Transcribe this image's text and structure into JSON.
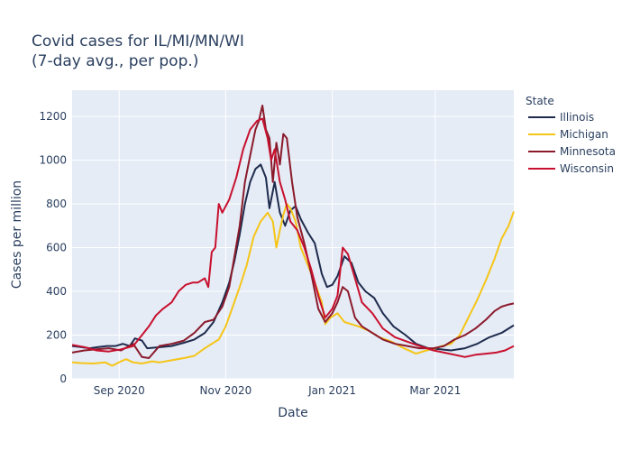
{
  "chart_data": {
    "type": "line",
    "title_lines": [
      "Covid cases for IL/MI/MN/WI",
      "(7-day avg., per pop.)"
    ],
    "xlabel": "Date",
    "ylabel": "Cases per million",
    "x_start": "2020-08-05",
    "x_end": "2021-04-15",
    "xlim": [
      "2020-08-05",
      "2021-04-15"
    ],
    "ylim": [
      0,
      1320
    ],
    "y_ticks": [
      0,
      200,
      400,
      600,
      800,
      1000,
      1200
    ],
    "x_ticks": [
      {
        "date": "2020-09-01",
        "label": "Sep 2020"
      },
      {
        "date": "2020-11-01",
        "label": "Nov 2020"
      },
      {
        "date": "2021-01-01",
        "label": "Jan 2021"
      },
      {
        "date": "2021-03-01",
        "label": "Mar 2021"
      }
    ],
    "grid": true,
    "plot_background": "#e5ecf6",
    "legend": {
      "title": "State",
      "placement": "right"
    },
    "series": [
      {
        "name": "Illinois",
        "color": "#1f2b4d",
        "points": [
          [
            "2020-08-05",
            150
          ],
          [
            "2020-08-10",
            145
          ],
          [
            "2020-08-15",
            140
          ],
          [
            "2020-08-20",
            145
          ],
          [
            "2020-08-25",
            150
          ],
          [
            "2020-08-30",
            150
          ],
          [
            "2020-09-03",
            160
          ],
          [
            "2020-09-07",
            150
          ],
          [
            "2020-09-10",
            185
          ],
          [
            "2020-09-14",
            175
          ],
          [
            "2020-09-17",
            140
          ],
          [
            "2020-09-25",
            145
          ],
          [
            "2020-10-01",
            150
          ],
          [
            "2020-10-08",
            165
          ],
          [
            "2020-10-14",
            180
          ],
          [
            "2020-10-20",
            210
          ],
          [
            "2020-10-25",
            260
          ],
          [
            "2020-10-30",
            350
          ],
          [
            "2020-11-03",
            440
          ],
          [
            "2020-11-06",
            540
          ],
          [
            "2020-11-09",
            660
          ],
          [
            "2020-11-12",
            800
          ],
          [
            "2020-11-15",
            900
          ],
          [
            "2020-11-18",
            960
          ],
          [
            "2020-11-21",
            980
          ],
          [
            "2020-11-24",
            920
          ],
          [
            "2020-11-26",
            780
          ],
          [
            "2020-11-29",
            900
          ],
          [
            "2020-12-02",
            760
          ],
          [
            "2020-12-05",
            700
          ],
          [
            "2020-12-08",
            770
          ],
          [
            "2020-12-11",
            790
          ],
          [
            "2020-12-14",
            730
          ],
          [
            "2020-12-18",
            670
          ],
          [
            "2020-12-22",
            620
          ],
          [
            "2020-12-26",
            480
          ],
          [
            "2020-12-29",
            420
          ],
          [
            "2021-01-01",
            430
          ],
          [
            "2021-01-04",
            470
          ],
          [
            "2021-01-08",
            560
          ],
          [
            "2021-01-12",
            530
          ],
          [
            "2021-01-16",
            440
          ],
          [
            "2021-01-20",
            400
          ],
          [
            "2021-01-25",
            370
          ],
          [
            "2021-01-30",
            300
          ],
          [
            "2021-02-05",
            240
          ],
          [
            "2021-02-12",
            200
          ],
          [
            "2021-02-18",
            160
          ],
          [
            "2021-02-25",
            140
          ],
          [
            "2021-03-04",
            135
          ],
          [
            "2021-03-10",
            130
          ],
          [
            "2021-03-18",
            140
          ],
          [
            "2021-03-25",
            160
          ],
          [
            "2021-04-01",
            190
          ],
          [
            "2021-04-08",
            210
          ],
          [
            "2021-04-15",
            245
          ]
        ]
      },
      {
        "name": "Michigan",
        "color": "#f5c518",
        "points": [
          [
            "2020-08-05",
            75
          ],
          [
            "2020-08-10",
            72
          ],
          [
            "2020-08-17",
            70
          ],
          [
            "2020-08-24",
            75
          ],
          [
            "2020-08-28",
            60
          ],
          [
            "2020-09-02",
            80
          ],
          [
            "2020-09-05",
            90
          ],
          [
            "2020-09-09",
            75
          ],
          [
            "2020-09-14",
            70
          ],
          [
            "2020-09-20",
            80
          ],
          [
            "2020-09-24",
            75
          ],
          [
            "2020-10-01",
            85
          ],
          [
            "2020-10-08",
            95
          ],
          [
            "2020-10-14",
            105
          ],
          [
            "2020-10-20",
            140
          ],
          [
            "2020-10-24",
            160
          ],
          [
            "2020-10-28",
            180
          ],
          [
            "2020-11-01",
            240
          ],
          [
            "2020-11-05",
            330
          ],
          [
            "2020-11-09",
            420
          ],
          [
            "2020-11-13",
            520
          ],
          [
            "2020-11-17",
            650
          ],
          [
            "2020-11-21",
            720
          ],
          [
            "2020-11-25",
            760
          ],
          [
            "2020-11-28",
            720
          ],
          [
            "2020-11-30",
            600
          ],
          [
            "2020-12-02",
            680
          ],
          [
            "2020-12-04",
            750
          ],
          [
            "2020-12-06",
            800
          ],
          [
            "2020-12-08",
            780
          ],
          [
            "2020-12-11",
            720
          ],
          [
            "2020-12-14",
            600
          ],
          [
            "2020-12-18",
            520
          ],
          [
            "2020-12-22",
            440
          ],
          [
            "2020-12-26",
            350
          ],
          [
            "2020-12-28",
            250
          ],
          [
            "2020-12-31",
            280
          ],
          [
            "2021-01-04",
            300
          ],
          [
            "2021-01-08",
            260
          ],
          [
            "2021-01-12",
            250
          ],
          [
            "2021-01-16",
            240
          ],
          [
            "2021-01-22",
            220
          ],
          [
            "2021-01-28",
            190
          ],
          [
            "2021-02-04",
            170
          ],
          [
            "2021-02-11",
            140
          ],
          [
            "2021-02-18",
            115
          ],
          [
            "2021-02-24",
            130
          ],
          [
            "2021-03-01",
            140
          ],
          [
            "2021-03-05",
            150
          ],
          [
            "2021-03-10",
            160
          ],
          [
            "2021-03-15",
            200
          ],
          [
            "2021-03-20",
            280
          ],
          [
            "2021-03-25",
            360
          ],
          [
            "2021-03-30",
            450
          ],
          [
            "2021-04-04",
            550
          ],
          [
            "2021-04-08",
            640
          ],
          [
            "2021-04-12",
            700
          ],
          [
            "2021-04-15",
            765
          ]
        ]
      },
      {
        "name": "Minnesota",
        "color": "#8b1a2b",
        "points": [
          [
            "2020-08-05",
            120
          ],
          [
            "2020-08-12",
            130
          ],
          [
            "2020-08-19",
            135
          ],
          [
            "2020-08-26",
            140
          ],
          [
            "2020-09-02",
            130
          ],
          [
            "2020-09-09",
            160
          ],
          [
            "2020-09-14",
            100
          ],
          [
            "2020-09-18",
            95
          ],
          [
            "2020-09-24",
            150
          ],
          [
            "2020-10-01",
            160
          ],
          [
            "2020-10-08",
            175
          ],
          [
            "2020-10-14",
            210
          ],
          [
            "2020-10-20",
            260
          ],
          [
            "2020-10-25",
            270
          ],
          [
            "2020-10-30",
            330
          ],
          [
            "2020-11-03",
            420
          ],
          [
            "2020-11-06",
            560
          ],
          [
            "2020-11-09",
            700
          ],
          [
            "2020-11-12",
            900
          ],
          [
            "2020-11-15",
            1020
          ],
          [
            "2020-11-18",
            1140
          ],
          [
            "2020-11-20",
            1180
          ],
          [
            "2020-11-22",
            1250
          ],
          [
            "2020-11-24",
            1140
          ],
          [
            "2020-11-26",
            1100
          ],
          [
            "2020-11-28",
            900
          ],
          [
            "2020-11-30",
            1080
          ],
          [
            "2020-12-02",
            980
          ],
          [
            "2020-12-04",
            1120
          ],
          [
            "2020-12-06",
            1100
          ],
          [
            "2020-12-09",
            900
          ],
          [
            "2020-12-12",
            740
          ],
          [
            "2020-12-16",
            620
          ],
          [
            "2020-12-20",
            480
          ],
          [
            "2020-12-24",
            320
          ],
          [
            "2020-12-28",
            260
          ],
          [
            "2021-01-01",
            300
          ],
          [
            "2021-01-04",
            350
          ],
          [
            "2021-01-07",
            420
          ],
          [
            "2021-01-10",
            400
          ],
          [
            "2021-01-14",
            280
          ],
          [
            "2021-01-18",
            240
          ],
          [
            "2021-01-24",
            210
          ],
          [
            "2021-01-30",
            180
          ],
          [
            "2021-02-06",
            160
          ],
          [
            "2021-02-13",
            150
          ],
          [
            "2021-02-20",
            140
          ],
          [
            "2021-02-28",
            140
          ],
          [
            "2021-03-06",
            150
          ],
          [
            "2021-03-12",
            180
          ],
          [
            "2021-03-18",
            200
          ],
          [
            "2021-03-24",
            230
          ],
          [
            "2021-03-30",
            270
          ],
          [
            "2021-04-04",
            310
          ],
          [
            "2021-04-08",
            330
          ],
          [
            "2021-04-12",
            340
          ],
          [
            "2021-04-15",
            345
          ]
        ]
      },
      {
        "name": "Wisconsin",
        "color": "#c8102e",
        "points": [
          [
            "2020-08-05",
            155
          ],
          [
            "2020-08-12",
            145
          ],
          [
            "2020-08-19",
            130
          ],
          [
            "2020-08-26",
            125
          ],
          [
            "2020-09-02",
            135
          ],
          [
            "2020-09-09",
            150
          ],
          [
            "2020-09-14",
            200
          ],
          [
            "2020-09-18",
            240
          ],
          [
            "2020-09-22",
            290
          ],
          [
            "2020-09-26",
            320
          ],
          [
            "2020-10-01",
            350
          ],
          [
            "2020-10-05",
            400
          ],
          [
            "2020-10-09",
            430
          ],
          [
            "2020-10-13",
            440
          ],
          [
            "2020-10-16",
            440
          ],
          [
            "2020-10-20",
            460
          ],
          [
            "2020-10-22",
            420
          ],
          [
            "2020-10-24",
            580
          ],
          [
            "2020-10-26",
            600
          ],
          [
            "2020-10-28",
            800
          ],
          [
            "2020-10-30",
            760
          ],
          [
            "2020-11-03",
            820
          ],
          [
            "2020-11-07",
            920
          ],
          [
            "2020-11-11",
            1050
          ],
          [
            "2020-11-15",
            1140
          ],
          [
            "2020-11-19",
            1180
          ],
          [
            "2020-11-22",
            1190
          ],
          [
            "2020-11-25",
            1100
          ],
          [
            "2020-11-27",
            1000
          ],
          [
            "2020-11-29",
            1050
          ],
          [
            "2020-12-02",
            900
          ],
          [
            "2020-12-05",
            820
          ],
          [
            "2020-12-08",
            720
          ],
          [
            "2020-12-12",
            680
          ],
          [
            "2020-12-16",
            600
          ],
          [
            "2020-12-20",
            500
          ],
          [
            "2020-12-24",
            380
          ],
          [
            "2020-12-28",
            280
          ],
          [
            "2021-01-01",
            320
          ],
          [
            "2021-01-04",
            380
          ],
          [
            "2021-01-07",
            600
          ],
          [
            "2021-01-10",
            570
          ],
          [
            "2021-01-14",
            460
          ],
          [
            "2021-01-18",
            350
          ],
          [
            "2021-01-24",
            300
          ],
          [
            "2021-01-30",
            230
          ],
          [
            "2021-02-06",
            190
          ],
          [
            "2021-02-13",
            170
          ],
          [
            "2021-02-20",
            150
          ],
          [
            "2021-02-28",
            130
          ],
          [
            "2021-03-06",
            120
          ],
          [
            "2021-03-12",
            110
          ],
          [
            "2021-03-18",
            100
          ],
          [
            "2021-03-24",
            110
          ],
          [
            "2021-03-30",
            115
          ],
          [
            "2021-04-05",
            120
          ],
          [
            "2021-04-10",
            130
          ],
          [
            "2021-04-15",
            150
          ]
        ]
      }
    ]
  }
}
